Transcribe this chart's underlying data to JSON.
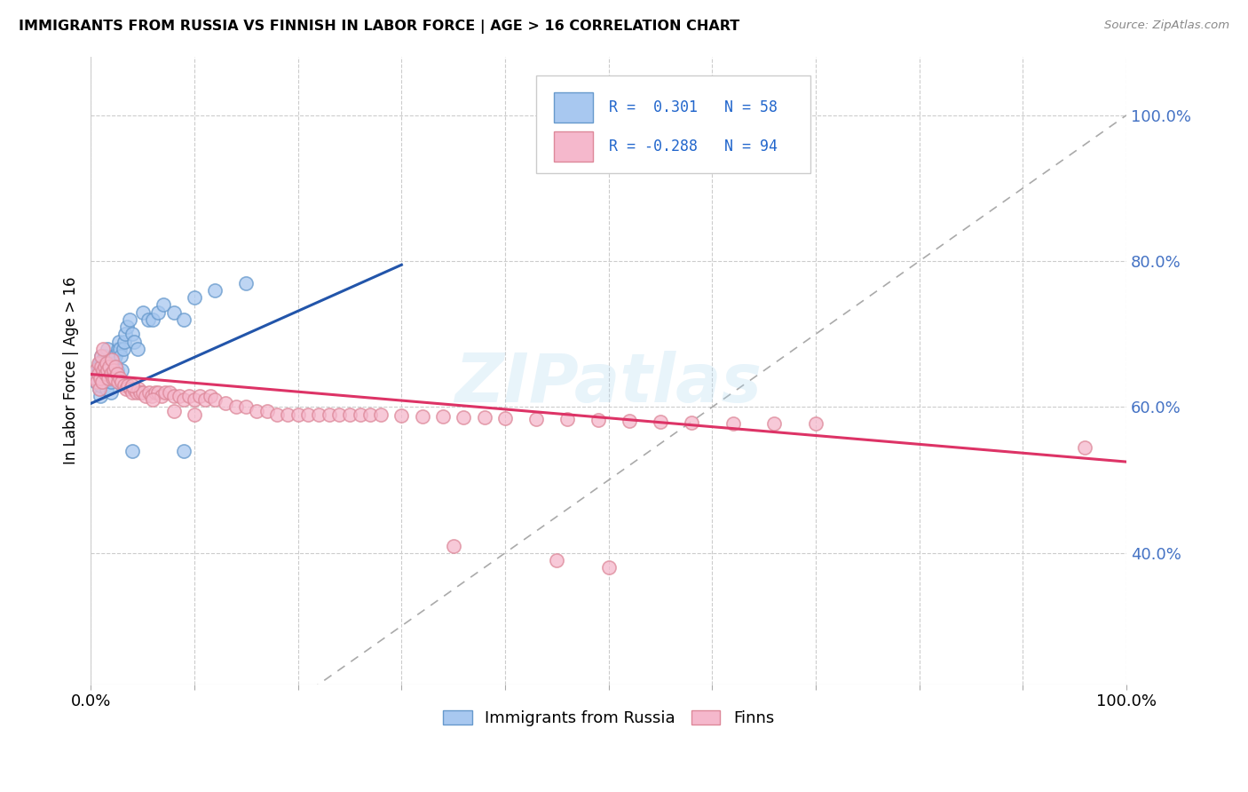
{
  "title": "IMMIGRANTS FROM RUSSIA VS FINNISH IN LABOR FORCE | AGE > 16 CORRELATION CHART",
  "source": "Source: ZipAtlas.com",
  "ylabel": "In Labor Force | Age > 16",
  "ytick_labels": [
    "40.0%",
    "60.0%",
    "80.0%",
    "100.0%"
  ],
  "ytick_positions": [
    0.4,
    0.6,
    0.8,
    1.0
  ],
  "xlim": [
    0.0,
    1.0
  ],
  "ylim": [
    0.22,
    1.08
  ],
  "russia_color": "#a8c8f0",
  "russia_edge": "#6699cc",
  "finns_color": "#f5b8cc",
  "finns_edge": "#dd8899",
  "line_russia": "#2255aa",
  "line_finns": "#dd3366",
  "line_diag": "#aaaaaa",
  "R_russia": 0.301,
  "N_russia": 58,
  "R_finns": -0.288,
  "N_finns": 94,
  "legend_russia": "Immigrants from Russia",
  "legend_finns": "Finns",
  "watermark": "ZIPatlas",
  "legend_text1": "R =  0.301   N = 58",
  "legend_text2": "R = -0.288   N = 94",
  "russia_line_x": [
    0.0,
    0.3
  ],
  "russia_line_y": [
    0.605,
    0.795
  ],
  "finns_line_x": [
    0.0,
    1.0
  ],
  "finns_line_y": [
    0.645,
    0.525
  ],
  "russia_x": [
    0.005,
    0.006,
    0.007,
    0.007,
    0.008,
    0.008,
    0.009,
    0.009,
    0.01,
    0.01,
    0.01,
    0.011,
    0.011,
    0.012,
    0.012,
    0.013,
    0.013,
    0.014,
    0.015,
    0.015,
    0.016,
    0.016,
    0.017,
    0.018,
    0.018,
    0.019,
    0.019,
    0.02,
    0.021,
    0.022,
    0.023,
    0.024,
    0.025,
    0.026,
    0.027,
    0.028,
    0.029,
    0.03,
    0.031,
    0.032,
    0.033,
    0.035,
    0.037,
    0.04,
    0.042,
    0.045,
    0.05,
    0.055,
    0.06,
    0.065,
    0.07,
    0.08,
    0.09,
    0.1,
    0.12,
    0.15,
    0.09,
    0.04
  ],
  "russia_y": [
    0.635,
    0.64,
    0.65,
    0.655,
    0.625,
    0.66,
    0.615,
    0.63,
    0.64,
    0.66,
    0.67,
    0.635,
    0.655,
    0.64,
    0.665,
    0.645,
    0.67,
    0.655,
    0.625,
    0.66,
    0.65,
    0.68,
    0.66,
    0.64,
    0.65,
    0.62,
    0.635,
    0.655,
    0.66,
    0.67,
    0.66,
    0.67,
    0.65,
    0.68,
    0.69,
    0.68,
    0.67,
    0.65,
    0.68,
    0.69,
    0.7,
    0.71,
    0.72,
    0.7,
    0.69,
    0.68,
    0.73,
    0.72,
    0.72,
    0.73,
    0.74,
    0.73,
    0.72,
    0.75,
    0.76,
    0.77,
    0.54,
    0.54
  ],
  "finns_x": [
    0.004,
    0.005,
    0.006,
    0.007,
    0.007,
    0.008,
    0.009,
    0.01,
    0.01,
    0.011,
    0.012,
    0.012,
    0.013,
    0.014,
    0.015,
    0.016,
    0.017,
    0.018,
    0.019,
    0.02,
    0.021,
    0.022,
    0.023,
    0.024,
    0.025,
    0.026,
    0.028,
    0.03,
    0.032,
    0.034,
    0.036,
    0.038,
    0.04,
    0.042,
    0.044,
    0.046,
    0.048,
    0.05,
    0.053,
    0.056,
    0.059,
    0.062,
    0.065,
    0.068,
    0.072,
    0.076,
    0.08,
    0.085,
    0.09,
    0.095,
    0.1,
    0.105,
    0.11,
    0.115,
    0.12,
    0.13,
    0.14,
    0.15,
    0.16,
    0.17,
    0.18,
    0.19,
    0.2,
    0.21,
    0.22,
    0.23,
    0.24,
    0.25,
    0.26,
    0.27,
    0.28,
    0.3,
    0.32,
    0.34,
    0.36,
    0.38,
    0.4,
    0.43,
    0.46,
    0.49,
    0.52,
    0.55,
    0.58,
    0.62,
    0.66,
    0.7,
    0.04,
    0.06,
    0.08,
    0.1,
    0.35,
    0.45,
    0.5,
    0.96
  ],
  "finns_y": [
    0.64,
    0.65,
    0.635,
    0.645,
    0.66,
    0.625,
    0.64,
    0.655,
    0.67,
    0.635,
    0.65,
    0.68,
    0.655,
    0.645,
    0.66,
    0.65,
    0.64,
    0.655,
    0.645,
    0.665,
    0.64,
    0.65,
    0.64,
    0.655,
    0.645,
    0.635,
    0.64,
    0.635,
    0.63,
    0.625,
    0.63,
    0.625,
    0.62,
    0.625,
    0.62,
    0.625,
    0.62,
    0.62,
    0.615,
    0.62,
    0.615,
    0.62,
    0.62,
    0.615,
    0.62,
    0.62,
    0.615,
    0.615,
    0.61,
    0.615,
    0.61,
    0.615,
    0.61,
    0.615,
    0.61,
    0.605,
    0.6,
    0.6,
    0.595,
    0.595,
    0.59,
    0.59,
    0.59,
    0.59,
    0.59,
    0.59,
    0.59,
    0.59,
    0.59,
    0.59,
    0.59,
    0.588,
    0.587,
    0.587,
    0.586,
    0.586,
    0.585,
    0.584,
    0.583,
    0.582,
    0.581,
    0.58,
    0.579,
    0.578,
    0.578,
    0.577,
    0.63,
    0.61,
    0.595,
    0.59,
    0.41,
    0.39,
    0.38,
    0.545
  ]
}
